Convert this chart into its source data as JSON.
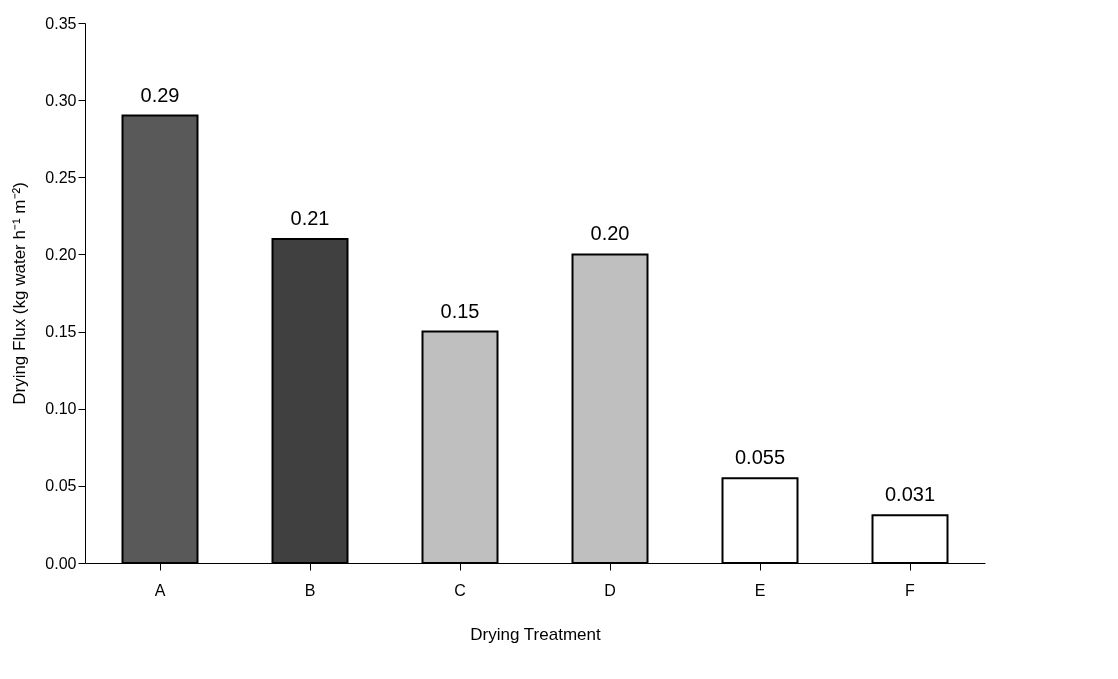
{
  "chart_data": {
    "type": "bar",
    "xlabel": "Drying Treatment",
    "ylabel": "Drying Flux (kg water h⁻¹ m⁻²)",
    "categories": [
      "A",
      "B",
      "C",
      "D",
      "E",
      "F"
    ],
    "values": [
      0.29,
      0.21,
      0.15,
      0.2,
      0.055,
      0.031
    ],
    "colors": [
      "#595959",
      "#404040",
      "#bfbfbf",
      "#bfbfbf",
      "#ffffff",
      "#ffffff"
    ],
    "value_labels": [
      "0.29",
      "0.21",
      "0.15",
      "0.20",
      "0.055",
      "0.031"
    ],
    "ylim": [
      0,
      0.35
    ],
    "yticks": [
      {
        "value": 0,
        "label": "0.00"
      },
      {
        "value": 0.05,
        "label": "0.05"
      },
      {
        "value": 0.1,
        "label": "0.10"
      },
      {
        "value": 0.15,
        "label": "0.15"
      },
      {
        "value": 0.2,
        "label": "0.20"
      },
      {
        "value": 0.25,
        "label": "0.25"
      },
      {
        "value": 0.3,
        "label": "0.30"
      },
      {
        "value": 0.35,
        "label": "0.35"
      }
    ],
    "grid": false
  }
}
